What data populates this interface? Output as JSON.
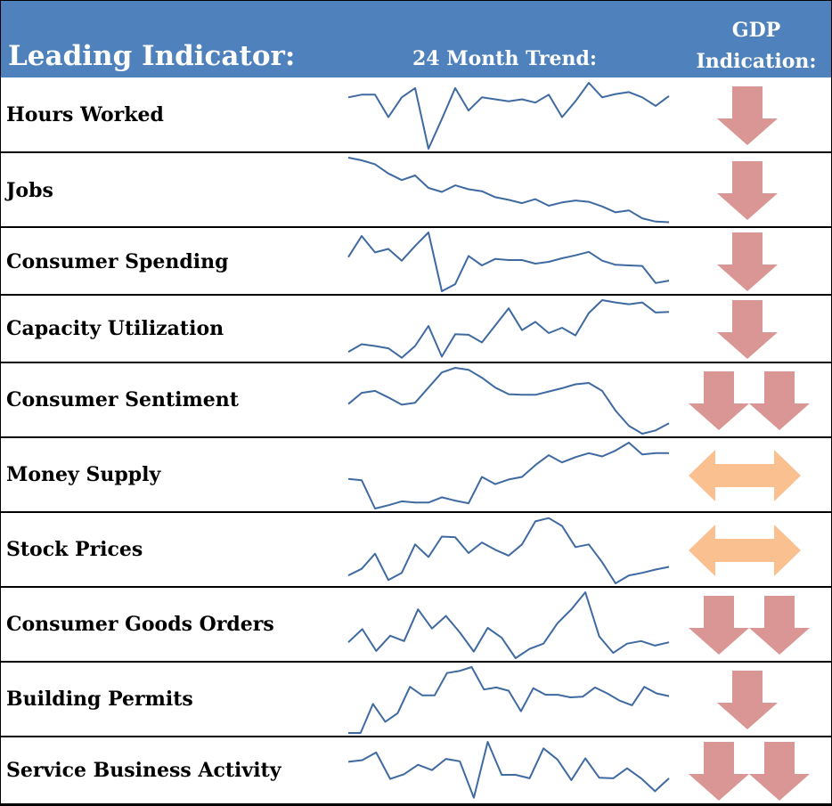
{
  "header": {
    "indicator_label": "Leading Indicator:",
    "trend_label": "24 Month Trend:",
    "gdp_line1": "GDP",
    "gdp_line2": "Indication:"
  },
  "colors": {
    "header_bg": "#4f81bd",
    "trend_line": "#3f6aa1",
    "down_arrow": "#d99694",
    "neutral_arrow": "#fac090"
  },
  "chart_data": {
    "type": "table",
    "rows": [
      {
        "name": "Hours Worked",
        "indication": "down",
        "indication_count": 1,
        "trend": [
          0.78,
          0.82,
          0.82,
          0.48,
          0.78,
          0.92,
          0,
          0.45,
          0.92,
          0.58,
          0.78,
          0.75,
          0.72,
          0.75,
          0.7,
          0.82,
          0.48,
          0.72,
          1,
          0.78,
          0.83,
          0.86,
          0.78,
          0.65,
          0.8
        ]
      },
      {
        "name": "Jobs",
        "indication": "down",
        "indication_count": 1,
        "trend": [
          1,
          0.96,
          0.9,
          0.76,
          0.66,
          0.73,
          0.54,
          0.48,
          0.58,
          0.52,
          0.49,
          0.4,
          0.36,
          0.31,
          0.37,
          0.27,
          0.32,
          0.35,
          0.33,
          0.26,
          0.17,
          0.2,
          0.08,
          0.03,
          0.02
        ]
      },
      {
        "name": "Consumer Spending",
        "indication": "down",
        "indication_count": 1,
        "trend": [
          0.58,
          0.94,
          0.66,
          0.72,
          0.52,
          0.77,
          1,
          0,
          0.12,
          0.6,
          0.44,
          0.55,
          0.53,
          0.53,
          0.47,
          0.5,
          0.56,
          0.61,
          0.67,
          0.52,
          0.45,
          0.44,
          0.43,
          0.14,
          0.18
        ]
      },
      {
        "name": "Capacity Utilization",
        "indication": "down",
        "indication_count": 1,
        "trend": [
          0.12,
          0.25,
          0.22,
          0.18,
          0.02,
          0.22,
          0.56,
          0.04,
          0.42,
          0.41,
          0.28,
          0.57,
          0.86,
          0.49,
          0.63,
          0.44,
          0.53,
          0.4,
          0.78,
          1,
          0.96,
          0.93,
          0.96,
          0.79,
          0.8
        ]
      },
      {
        "name": "Consumer Sentiment",
        "indication": "down",
        "indication_count": 2,
        "trend": [
          0.45,
          0.62,
          0.65,
          0.55,
          0.44,
          0.47,
          0.7,
          0.93,
          1,
          0.97,
          0.85,
          0.7,
          0.6,
          0.59,
          0.59,
          0.64,
          0.69,
          0.75,
          0.77,
          0.65,
          0.35,
          0.12,
          0,
          0.05,
          0.16
        ]
      },
      {
        "name": "Money Supply",
        "indication": "neutral",
        "indication_count": 1,
        "trend": [
          0.45,
          0.43,
          0,
          0.05,
          0.11,
          0.09,
          0.09,
          0.17,
          0.12,
          0.08,
          0.48,
          0.37,
          0.44,
          0.48,
          0.66,
          0.81,
          0.7,
          0.78,
          0.84,
          0.79,
          0.88,
          1,
          0.82,
          0.84,
          0.84
        ]
      },
      {
        "name": "Stock Prices",
        "indication": "neutral",
        "indication_count": 1,
        "trend": [
          0.12,
          0.22,
          0.45,
          0.05,
          0.16,
          0.59,
          0.4,
          0.71,
          0.7,
          0.46,
          0.62,
          0.51,
          0.42,
          0.59,
          0.94,
          0.99,
          0.87,
          0.55,
          0.59,
          0.32,
          0,
          0.12,
          0.16,
          0.21,
          0.25
        ]
      },
      {
        "name": "Consumer Goods Orders",
        "indication": "down",
        "indication_count": 2,
        "trend": [
          0.24,
          0.44,
          0.11,
          0.34,
          0.26,
          0.74,
          0.45,
          0.64,
          0.39,
          0.1,
          0.46,
          0.31,
          0,
          0.14,
          0.22,
          0.53,
          0.74,
          1,
          0.33,
          0.08,
          0.22,
          0.26,
          0.19,
          0.24
        ]
      },
      {
        "name": "Building Permits",
        "indication": "down",
        "indication_count": 1,
        "trend": [
          0,
          0,
          0.44,
          0.17,
          0.3,
          0.7,
          0.57,
          0.57,
          0.91,
          0.94,
          1,
          0.66,
          0.69,
          0.64,
          0.33,
          0.68,
          0.58,
          0.58,
          0.54,
          0.55,
          0.69,
          0.6,
          0.49,
          0.42,
          0.7,
          0.6,
          0.56
        ]
      },
      {
        "name": "Service Business Activity",
        "indication": "down",
        "indication_count": 2,
        "trend": [
          0.66,
          0.69,
          0.82,
          0.37,
          0.45,
          0.61,
          0.52,
          0.71,
          0.67,
          0.05,
          1,
          0.44,
          0.44,
          0.38,
          0.89,
          0.7,
          0.35,
          0.72,
          0.39,
          0.38,
          0.55,
          0.38,
          0.16,
          0.38
        ]
      }
    ]
  }
}
